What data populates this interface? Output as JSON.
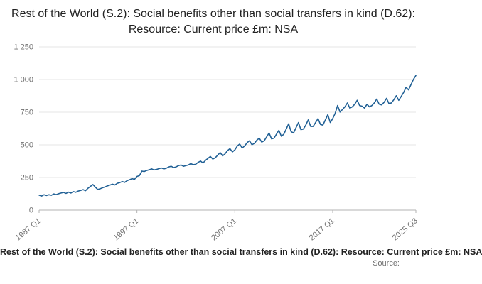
{
  "title": "Rest of the World (S.2): Social benefits other than social transfers in kind (D.62): Resource: Current price £m: NSA",
  "footer": {
    "caption": "Rest of the World (S.2): Social benefits other than social transfers in kind (D.62): Resource: Current price £m: NSA",
    "source": "Source:"
  },
  "chart_data": {
    "type": "line",
    "title": "Rest of the World (S.2): Social benefits other than social transfers in kind (D.62): Resource: Current price £m: NSA",
    "xlabel": "",
    "ylabel": "",
    "frequency": "quarterly",
    "x_start": "1987 Q1",
    "x_end": "2025 Q3",
    "ylim": [
      0,
      1250
    ],
    "grid": true,
    "legend": "none",
    "line_color": "#206095",
    "grid_color": "#e6e6e6",
    "axis_color": "#b3b3b3",
    "tick_text_color": "#707070",
    "y_ticks": [
      0,
      250,
      500,
      750,
      1000,
      1250
    ],
    "y_tick_labels": [
      "0",
      "250",
      "500",
      "750",
      "1 000",
      "1 250"
    ],
    "x_tick_indices": [
      0,
      40,
      80,
      120,
      154
    ],
    "x_tick_labels": [
      "1987 Q1",
      "1997 Q1",
      "2007 Q1",
      "2017 Q1",
      "2025 Q3"
    ],
    "values": [
      115,
      108,
      118,
      112,
      118,
      114,
      124,
      119,
      126,
      131,
      136,
      128,
      138,
      131,
      142,
      137,
      146,
      151,
      157,
      149,
      168,
      182,
      196,
      176,
      158,
      164,
      172,
      178,
      186,
      192,
      199,
      193,
      206,
      211,
      219,
      213,
      226,
      233,
      241,
      236,
      258,
      264,
      299,
      296,
      304,
      309,
      316,
      308,
      312,
      318,
      323,
      316,
      321,
      331,
      336,
      326,
      331,
      341,
      346,
      336,
      341,
      346,
      356,
      348,
      351,
      366,
      376,
      361,
      381,
      396,
      411,
      391,
      401,
      421,
      441,
      416,
      431,
      456,
      471,
      446,
      461,
      491,
      506,
      476,
      491,
      516,
      531,
      501,
      511,
      536,
      551,
      521,
      531,
      561,
      591,
      546,
      551,
      581,
      611,
      566,
      581,
      621,
      661,
      601,
      591,
      631,
      671,
      616,
      621,
      651,
      691,
      641,
      641,
      671,
      701,
      656,
      651,
      691,
      731,
      671,
      701,
      741,
      801,
      751,
      771,
      791,
      821,
      781,
      791,
      811,
      841,
      801,
      796,
      781,
      811,
      791,
      801,
      821,
      851,
      811,
      806,
      826,
      856,
      816,
      821,
      846,
      876,
      841,
      871,
      901,
      941,
      921,
      961,
      1001,
      1031
    ]
  }
}
